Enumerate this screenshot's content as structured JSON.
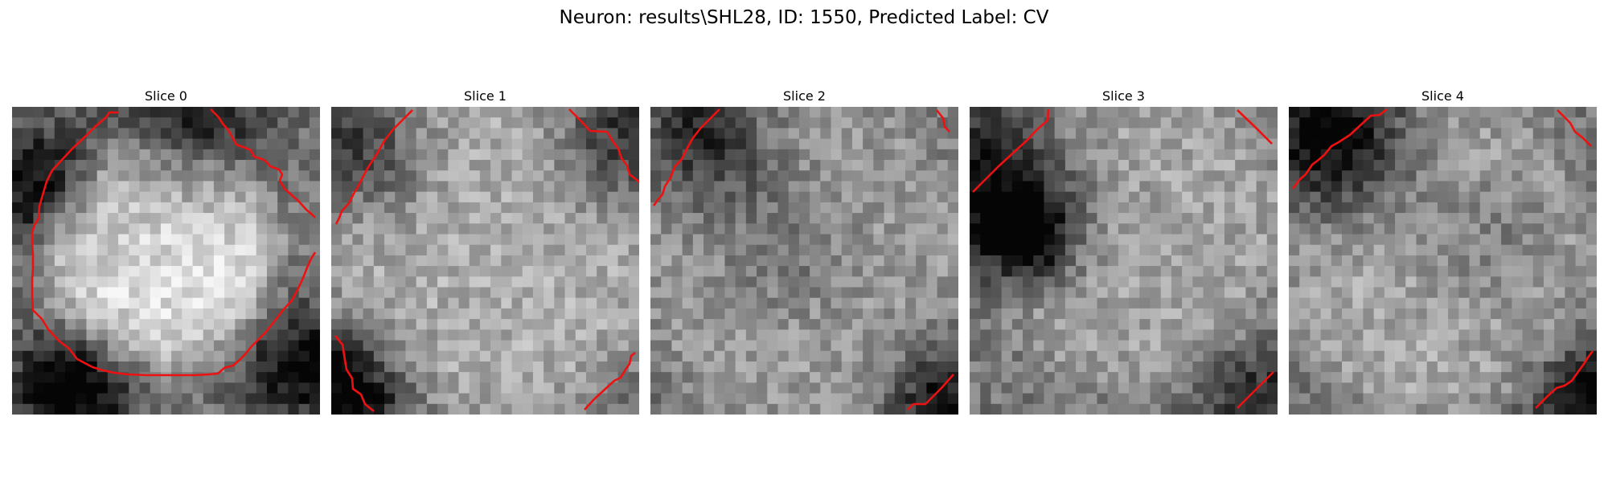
{
  "figure": {
    "title": "Neuron: results\\SHL28, ID: 1550, Predicted Label: CV",
    "contour_color": "#ee1111"
  },
  "panels": [
    {
      "title": "Slice 0",
      "seed": 11,
      "blobs": [
        [
          13.3,
          13.0,
          10.8,
          0.42
        ]
      ],
      "darks": [
        [
          2,
          7,
          4,
          0.45
        ],
        [
          5,
          26,
          4,
          0.55
        ],
        [
          16,
          2,
          5,
          0.4
        ],
        [
          27,
          24,
          4,
          0.45
        ]
      ]
    },
    {
      "title": "Slice 1",
      "seed": 23,
      "blobs": [
        [
          14,
          13,
          16,
          0.22
        ]
      ],
      "darks": [
        [
          1,
          26,
          4,
          0.55
        ],
        [
          3,
          4,
          4,
          0.35
        ],
        [
          26,
          3,
          4,
          0.35
        ]
      ]
    },
    {
      "title": "Slice 2",
      "seed": 37,
      "blobs": [
        [
          14,
          14,
          16,
          0.15
        ]
      ],
      "darks": [
        [
          5,
          3,
          4,
          0.4
        ],
        [
          27,
          27,
          4,
          0.4
        ],
        [
          12,
          12,
          5,
          0.15
        ]
      ]
    },
    {
      "title": "Slice 3",
      "seed": 53,
      "blobs": [
        [
          15,
          11,
          15,
          0.18
        ]
      ],
      "darks": [
        [
          2,
          7,
          5,
          0.55
        ],
        [
          5,
          12,
          3,
          0.55
        ],
        [
          27,
          27,
          4,
          0.3
        ]
      ]
    },
    {
      "title": "Slice 4",
      "seed": 71,
      "blobs": [
        [
          14,
          14,
          15,
          0.2
        ]
      ],
      "darks": [
        [
          4,
          3,
          5,
          0.55
        ],
        [
          28,
          27,
          4,
          0.5
        ],
        [
          19,
          12,
          5,
          0.15
        ]
      ]
    }
  ]
}
